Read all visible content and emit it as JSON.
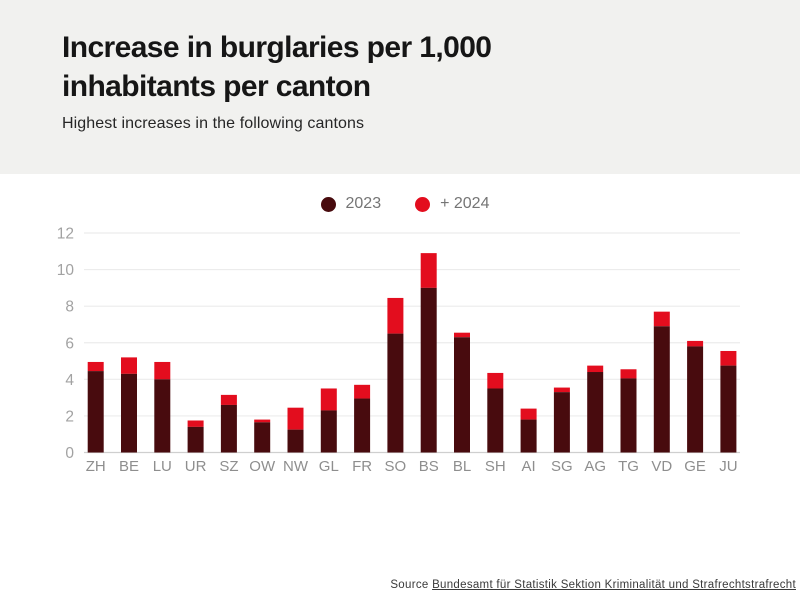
{
  "header": {
    "title": "Increase in burglaries per 1,000 inhabitants per canton",
    "subtitle": "Highest increases in the following cantons"
  },
  "legend": [
    {
      "label": "2023",
      "color": "#480b0e"
    },
    {
      "label": "+ 2024",
      "color": "#e30d1e"
    }
  ],
  "chart_data": {
    "type": "bar",
    "stacked": true,
    "title": "Increase in burglaries per 1,000 inhabitants per canton",
    "xlabel": "",
    "ylabel": "",
    "ylim": [
      0,
      12
    ],
    "yticks": [
      0,
      2,
      4,
      6,
      8,
      10,
      12
    ],
    "grid": true,
    "legend_position": "top-center",
    "categories": [
      "ZH",
      "BE",
      "LU",
      "UR",
      "SZ",
      "OW",
      "NW",
      "GL",
      "FR",
      "SO",
      "BS",
      "BL",
      "SH",
      "AI",
      "SG",
      "AG",
      "TG",
      "VD",
      "GE",
      "JU"
    ],
    "series": [
      {
        "name": "2023",
        "color": "#480b0e",
        "values": [
          4.45,
          4.3,
          4.0,
          1.4,
          2.6,
          1.65,
          1.25,
          2.3,
          2.95,
          6.5,
          9.0,
          6.3,
          3.5,
          1.8,
          3.3,
          4.4,
          4.05,
          6.9,
          5.8,
          4.75
        ]
      },
      {
        "name": "+ 2024",
        "color": "#e30d1e",
        "values": [
          0.5,
          0.9,
          0.95,
          0.35,
          0.55,
          0.15,
          1.2,
          1.2,
          0.75,
          1.95,
          1.9,
          0.25,
          0.85,
          0.6,
          0.25,
          0.35,
          0.5,
          0.8,
          0.3,
          0.8
        ]
      }
    ]
  },
  "source": {
    "prefix": "Source ",
    "link": "Bundesamt für Statistik Sektion Kriminalität und Strafrechtstrafrecht"
  },
  "colors": {
    "header_bg": "#f1f1ef",
    "bar_2023": "#480b0e",
    "bar_2024": "#e30d1e",
    "grid": "#ececec",
    "axis": "#cfcfcf",
    "tick_text": "#a2a2a2",
    "canton_text": "#8e8e8e",
    "legend_text": "#757575"
  }
}
